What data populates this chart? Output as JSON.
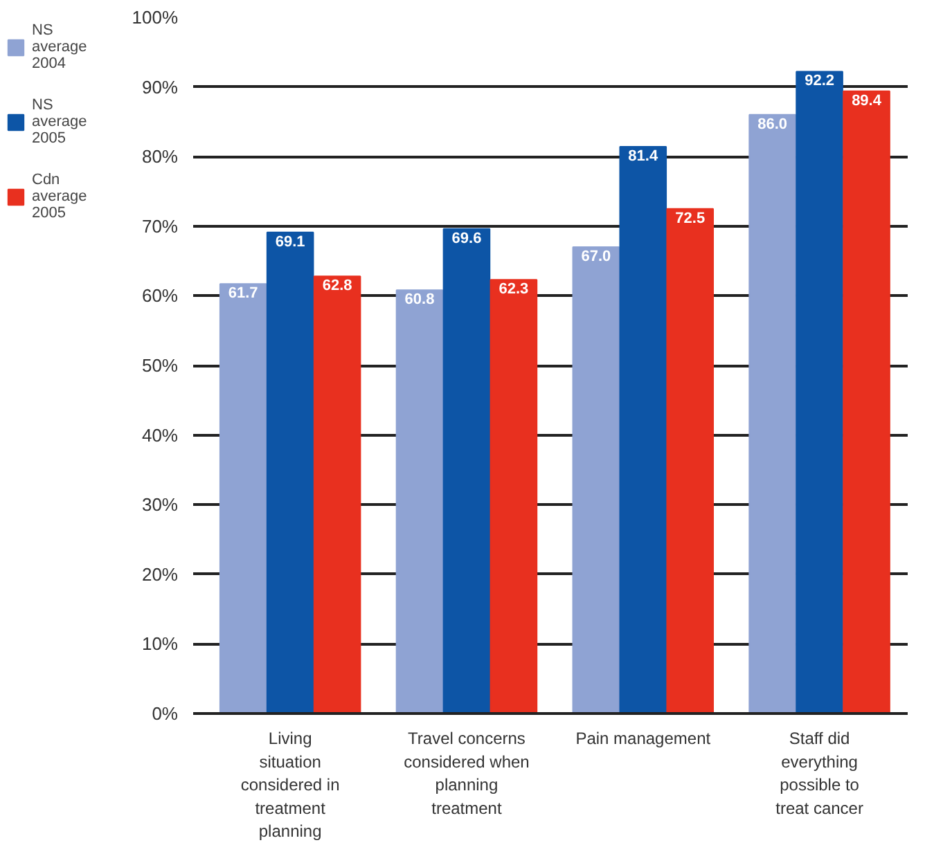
{
  "chart_data": {
    "type": "bar",
    "categories": [
      "Living situation considered in treatment planning",
      "Travel concerns considered when planning treatment",
      "Pain management",
      "Staff did everything possible to treat cancer"
    ],
    "series": [
      {
        "name": "NS average 2004",
        "color": "#8fa3d3",
        "values": [
          61.7,
          60.8,
          67.0,
          86.0
        ],
        "value_labels": [
          "61.7",
          "60.8",
          "67.0",
          "86.0"
        ]
      },
      {
        "name": "NS average 2005",
        "color": "#0d55a6",
        "values": [
          69.1,
          69.6,
          81.4,
          92.2
        ],
        "value_labels": [
          "69.1",
          "69.6",
          "81.4",
          "92.2"
        ]
      },
      {
        "name": "Cdn average 2005",
        "color": "#e8301f",
        "values": [
          62.8,
          62.3,
          72.5,
          89.4
        ],
        "value_labels": [
          "62.8",
          "62.3",
          "72.5",
          "89.4"
        ]
      }
    ],
    "ylim": [
      0,
      100
    ],
    "yticks": [
      {
        "value": 0,
        "label": "0%"
      },
      {
        "value": 10,
        "label": "10%"
      },
      {
        "value": 20,
        "label": "20%"
      },
      {
        "value": 30,
        "label": "30%"
      },
      {
        "value": 40,
        "label": "40%"
      },
      {
        "value": 50,
        "label": "50%"
      },
      {
        "value": 60,
        "label": "60%"
      },
      {
        "value": 70,
        "label": "70%"
      },
      {
        "value": 80,
        "label": "80%"
      },
      {
        "value": 90,
        "label": "90%"
      },
      {
        "value": 100,
        "label": "100%"
      }
    ],
    "grid": "y",
    "legend": "left"
  }
}
